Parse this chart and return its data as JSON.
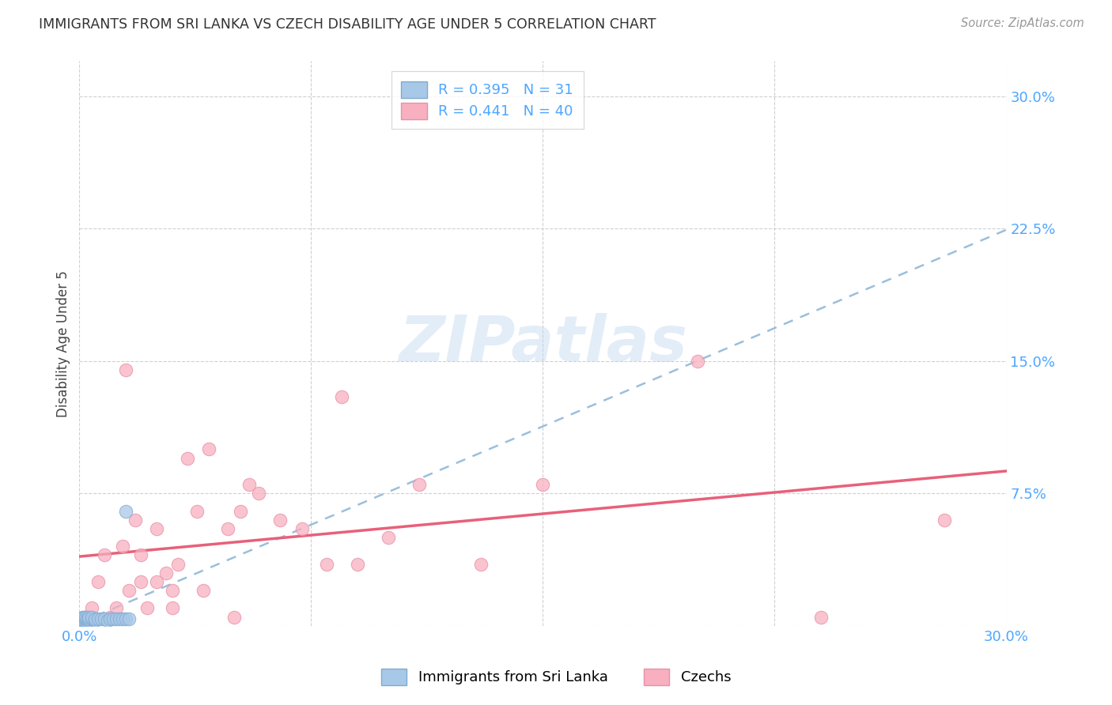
{
  "title": "IMMIGRANTS FROM SRI LANKA VS CZECH DISABILITY AGE UNDER 5 CORRELATION CHART",
  "source": "Source: ZipAtlas.com",
  "ylabel": "Disability Age Under 5",
  "watermark": "ZIPatlas",
  "series1_label": "Immigrants from Sri Lanka",
  "series1_color": "#a8c8e8",
  "series1_edge": "#80aad0",
  "series1_line_color": "#90b8d8",
  "series1_R": 0.395,
  "series1_N": 31,
  "series2_label": "Czechs",
  "series2_color": "#f8b0c0",
  "series2_edge": "#e890a8",
  "series2_line_color": "#e8607a",
  "series2_R": 0.441,
  "series2_N": 40,
  "xlim": [
    0.0,
    0.3
  ],
  "ylim": [
    0.0,
    0.32
  ],
  "blue_dots_x": [
    0.0005,
    0.0005,
    0.0008,
    0.001,
    0.001,
    0.001,
    0.0015,
    0.0015,
    0.002,
    0.002,
    0.002,
    0.0025,
    0.003,
    0.003,
    0.003,
    0.004,
    0.004,
    0.005,
    0.005,
    0.006,
    0.007,
    0.008,
    0.009,
    0.01,
    0.011,
    0.012,
    0.013,
    0.014,
    0.015,
    0.016,
    0.015
  ],
  "blue_dots_y": [
    0.003,
    0.004,
    0.003,
    0.003,
    0.004,
    0.005,
    0.003,
    0.005,
    0.003,
    0.004,
    0.005,
    0.004,
    0.003,
    0.004,
    0.005,
    0.004,
    0.005,
    0.003,
    0.004,
    0.004,
    0.004,
    0.004,
    0.003,
    0.004,
    0.004,
    0.004,
    0.004,
    0.004,
    0.004,
    0.004,
    0.065
  ],
  "pink_dots_x": [
    0.002,
    0.004,
    0.006,
    0.008,
    0.01,
    0.012,
    0.014,
    0.016,
    0.018,
    0.02,
    0.022,
    0.025,
    0.028,
    0.03,
    0.032,
    0.035,
    0.038,
    0.042,
    0.048,
    0.052,
    0.058,
    0.065,
    0.072,
    0.08,
    0.085,
    0.09,
    0.1,
    0.11,
    0.13,
    0.15,
    0.015,
    0.02,
    0.025,
    0.03,
    0.04,
    0.05,
    0.055,
    0.2,
    0.24,
    0.28
  ],
  "pink_dots_y": [
    0.005,
    0.01,
    0.025,
    0.04,
    0.005,
    0.01,
    0.045,
    0.02,
    0.06,
    0.025,
    0.01,
    0.055,
    0.03,
    0.01,
    0.035,
    0.095,
    0.065,
    0.1,
    0.055,
    0.065,
    0.075,
    0.06,
    0.055,
    0.035,
    0.13,
    0.035,
    0.05,
    0.08,
    0.035,
    0.08,
    0.145,
    0.04,
    0.025,
    0.02,
    0.02,
    0.005,
    0.08,
    0.15,
    0.005,
    0.06
  ],
  "tick_color": "#4da6ff",
  "grid_color": "#d0d0d0",
  "title_color": "#333333",
  "source_color": "#999999",
  "bg_color": "#ffffff"
}
